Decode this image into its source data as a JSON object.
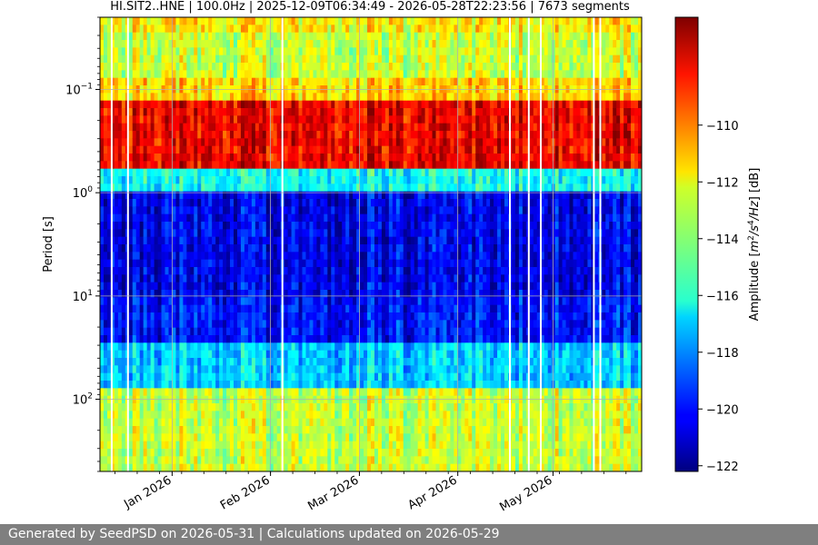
{
  "footer": "Generated by SeedPSD on 2026-05-31 | Calculations updated on 2026-05-29",
  "chart_data": {
    "type": "heatmap",
    "title": "HI.SIT2..HNE | 100.0Hz | 2025-12-09T06:34:49 - 2026-05-28T22:23:56 | 7673 segments",
    "ylabel": "Period [s]",
    "xlabel": "",
    "x_range": [
      "2025-12-09T06:34:49",
      "2026-05-28T22:23:56"
    ],
    "x_ticks": [
      {
        "date": "2026-01-01",
        "label": "Jan 2026"
      },
      {
        "date": "2026-02-01",
        "label": "Feb 2026"
      },
      {
        "date": "2026-03-01",
        "label": "Mar 2026"
      },
      {
        "date": "2026-04-01",
        "label": "Apr 2026"
      },
      {
        "date": "2026-05-01",
        "label": "May 2026"
      }
    ],
    "y_scale": "log",
    "y_inverted": true,
    "y_range_s": [
      0.02,
      500
    ],
    "y_ticks": [
      {
        "value": 0.1,
        "base": "10",
        "exp": "−1"
      },
      {
        "value": 1,
        "base": "10",
        "exp": "0"
      },
      {
        "value": 10,
        "base": "10",
        "exp": "1"
      },
      {
        "value": 100,
        "base": "10",
        "exp": "2"
      }
    ],
    "grid": true,
    "colormap": "jet",
    "colorbar": {
      "label_parts": [
        "Amplitude [",
        "m",
        "2",
        "/s",
        "4",
        "/Hz",
        "] [dB]"
      ],
      "range_db": [
        -122.2,
        -106.2
      ],
      "ticks": [
        -110,
        -112,
        -114,
        -116,
        -118,
        -120,
        -122
      ],
      "tick_labels": [
        "−110",
        "−112",
        "−114",
        "−116",
        "−118",
        "−120",
        "−122"
      ]
    },
    "bands_by_period_s": [
      {
        "period_min": 0.02,
        "period_max": 0.03,
        "level_db": -112
      },
      {
        "period_min": 0.03,
        "period_max": 0.08,
        "level_db": -113
      },
      {
        "period_min": 0.08,
        "period_max": 0.13,
        "level_db": -111.5
      },
      {
        "period_min": 0.13,
        "period_max": 0.55,
        "level_db": -108
      },
      {
        "period_min": 0.55,
        "period_max": 1.0,
        "level_db": -116
      },
      {
        "period_min": 1.0,
        "period_max": 10,
        "level_db": -120.5
      },
      {
        "period_min": 10,
        "period_max": 30,
        "level_db": -120
      },
      {
        "period_min": 30,
        "period_max": 80,
        "level_db": -117
      },
      {
        "period_min": 80,
        "period_max": 500,
        "level_db": -113
      }
    ]
  }
}
